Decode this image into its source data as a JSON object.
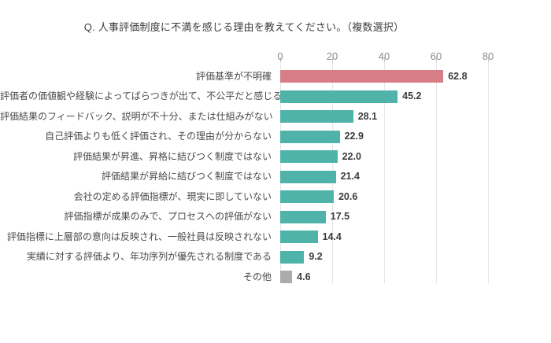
{
  "title": "Q. 人事評価制度に不満を感じる理由を教えてください。（複数選択）",
  "colors": {
    "background": "#ffffff",
    "bar_highlight": "#d67d87",
    "bar_default": "#4fb3a9",
    "bar_other": "#ababab",
    "gridline": "#e5e5e5",
    "tick": "#c8c8c8",
    "axis_text": "#8a8a8a",
    "category_text": "#4a4a4a",
    "value_text": "#3c3c3c",
    "title_text": "#3c3c3c"
  },
  "chart_data": {
    "type": "bar",
    "orientation": "horizontal",
    "title": "Q. 人事評価制度に不満を感じる理由を教えてください。（複数選択）",
    "categories": [
      "評価基準が不明確",
      "評価者の価値観や経験によってばらつきが出て、不公平だと感じる",
      "評価結果のフィードバック、説明が不十分、または仕組みがない",
      "自己評価よりも低く評価され、その理由が分からない",
      "評価結果が昇進、昇格に結びつく制度ではない",
      "評価結果が昇給に結びつく制度ではない",
      "会社の定める評価指標が、現実に即していない",
      "評価指標が成果のみで、プロセスへの評価がない",
      "評価指標に上層部の意向は反映され、一般社員は反映されない",
      "実績に対する評価より、年功序列が優先される制度である",
      "その他"
    ],
    "values": [
      62.8,
      45.2,
      28.1,
      22.9,
      22.0,
      21.4,
      20.6,
      17.5,
      14.4,
      9.2,
      4.6
    ],
    "value_labels": [
      "62.8",
      "45.2",
      "28.1",
      "22.9",
      "22.0",
      "21.4",
      "20.6",
      "17.5",
      "14.4",
      "9.2",
      "4.6"
    ],
    "bar_color_roles": [
      "highlight",
      "default",
      "default",
      "default",
      "default",
      "default",
      "default",
      "default",
      "default",
      "default",
      "other"
    ],
    "xlabel": "",
    "ylabel": "",
    "xlim": [
      0,
      80
    ],
    "x_ticks": [
      0,
      20,
      40,
      60,
      80
    ],
    "x_axis_position": "top",
    "grid": true,
    "legend": false
  }
}
